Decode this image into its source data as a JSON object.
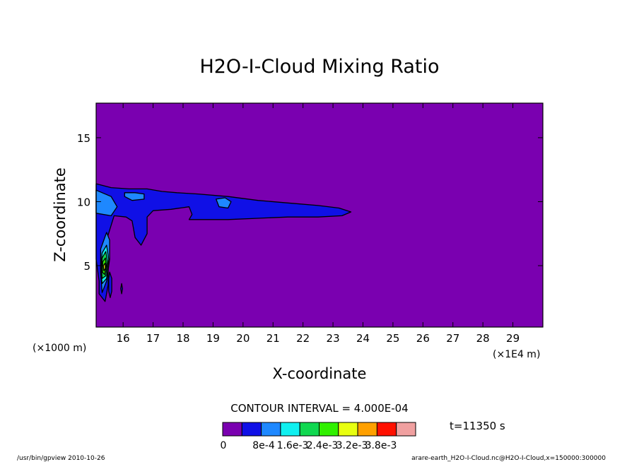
{
  "chart_data": {
    "type": "heatmap",
    "title": "H2O-I-Cloud Mixing Ratio",
    "xlabel": "X-coordinate",
    "ylabel": "Z-coordinate",
    "x_unit_left": "(×1000 m)",
    "x_unit_right": "(×1E4 m)",
    "xlim": [
      15.1,
      30.0
    ],
    "ylim": [
      0.2,
      17.7
    ],
    "x_ticks": [
      "16",
      "17",
      "18",
      "19",
      "20",
      "21",
      "22",
      "23",
      "24",
      "25",
      "26",
      "27",
      "28",
      "29"
    ],
    "y_ticks": [
      "5",
      "10",
      "15"
    ],
    "contour_interval": "CONTOUR INTERVAL = 4.000E-04",
    "time": "t=11350 s",
    "levels": [
      "0",
      "8e-4",
      "1.6e-3",
      "2.4e-3",
      "3.2e-3",
      "3.8e-3"
    ],
    "palette": [
      "#7a00b0",
      "#1010e6",
      "#1e88ff",
      "#10f0f0",
      "#10d850",
      "#30f000",
      "#e8ff10",
      "#ffa000",
      "#ff1000",
      "#f0a0a0"
    ],
    "fields": [
      {
        "name": "cloud-layer",
        "level": 1,
        "points": [
          [
            15.1,
            11.4
          ],
          [
            15.6,
            11.1
          ],
          [
            16.2,
            11.0
          ],
          [
            16.8,
            11.0
          ],
          [
            17.3,
            10.8
          ],
          [
            17.8,
            10.7
          ],
          [
            18.5,
            10.6
          ],
          [
            19.5,
            10.4
          ],
          [
            20.5,
            10.1
          ],
          [
            21.5,
            9.9
          ],
          [
            22.5,
            9.7
          ],
          [
            23.2,
            9.5
          ],
          [
            23.6,
            9.2
          ],
          [
            23.3,
            8.9
          ],
          [
            22.5,
            8.8
          ],
          [
            21.5,
            8.8
          ],
          [
            20.5,
            8.7
          ],
          [
            19.5,
            8.6
          ],
          [
            18.5,
            8.6
          ],
          [
            18.2,
            8.6
          ],
          [
            18.3,
            9.0
          ],
          [
            18.2,
            9.6
          ],
          [
            17.6,
            9.4
          ],
          [
            17.0,
            9.3
          ],
          [
            16.8,
            8.8
          ],
          [
            16.8,
            7.5
          ],
          [
            16.6,
            6.6
          ],
          [
            16.4,
            7.2
          ],
          [
            16.3,
            8.5
          ],
          [
            16.1,
            8.8
          ],
          [
            15.7,
            8.9
          ],
          [
            15.5,
            7.4
          ],
          [
            15.4,
            6.0
          ],
          [
            15.5,
            5.0
          ],
          [
            15.5,
            3.5
          ],
          [
            15.4,
            2.2
          ],
          [
            15.2,
            2.8
          ],
          [
            15.2,
            3.8
          ],
          [
            15.1,
            5.5
          ],
          [
            15.1,
            8.0
          ]
        ]
      },
      {
        "name": "col-streak-a",
        "level": 1,
        "points": [
          [
            15.55,
            4.5
          ],
          [
            15.62,
            4.0
          ],
          [
            15.62,
            3.0
          ],
          [
            15.57,
            2.5
          ],
          [
            15.52,
            3.0
          ],
          [
            15.52,
            4.0
          ]
        ]
      },
      {
        "name": "col-streak-b",
        "level": 1,
        "points": [
          [
            15.95,
            3.6
          ],
          [
            15.98,
            3.2
          ],
          [
            15.95,
            2.8
          ],
          [
            15.92,
            3.2
          ]
        ]
      },
      {
        "name": "inner-left",
        "level": 2,
        "points": [
          [
            15.1,
            10.9
          ],
          [
            15.6,
            10.4
          ],
          [
            15.8,
            9.6
          ],
          [
            15.6,
            8.9
          ],
          [
            15.1,
            9.1
          ]
        ]
      },
      {
        "name": "inner-patch-a",
        "level": 2,
        "points": [
          [
            16.05,
            10.7
          ],
          [
            16.4,
            10.7
          ],
          [
            16.7,
            10.6
          ],
          [
            16.7,
            10.2
          ],
          [
            16.3,
            10.1
          ],
          [
            16.05,
            10.4
          ]
        ]
      },
      {
        "name": "inner-patch-b",
        "level": 2,
        "points": [
          [
            19.1,
            10.2
          ],
          [
            19.4,
            10.3
          ],
          [
            19.6,
            10.0
          ],
          [
            19.5,
            9.5
          ],
          [
            19.2,
            9.6
          ]
        ]
      },
      {
        "name": "inner-column",
        "level": 2,
        "points": [
          [
            15.25,
            6.3
          ],
          [
            15.45,
            7.6
          ],
          [
            15.55,
            7.0
          ],
          [
            15.55,
            5.5
          ],
          [
            15.45,
            3.8
          ],
          [
            15.3,
            2.9
          ],
          [
            15.25,
            4.5
          ]
        ]
      },
      {
        "name": "core-1",
        "level": 3,
        "points": [
          [
            15.3,
            6.0
          ],
          [
            15.45,
            6.6
          ],
          [
            15.52,
            5.5
          ],
          [
            15.45,
            4.0
          ],
          [
            15.3,
            3.6
          ],
          [
            15.25,
            4.8
          ]
        ]
      },
      {
        "name": "core-2",
        "level": 4,
        "points": [
          [
            15.3,
            5.6
          ],
          [
            15.42,
            6.1
          ],
          [
            15.48,
            5.3
          ],
          [
            15.42,
            4.2
          ],
          [
            15.3,
            4.0
          ],
          [
            15.28,
            4.8
          ]
        ]
      },
      {
        "name": "core-3",
        "level": 5,
        "points": [
          [
            15.32,
            5.3
          ],
          [
            15.41,
            5.6
          ],
          [
            15.44,
            5.0
          ],
          [
            15.38,
            4.3
          ],
          [
            15.31,
            4.5
          ]
        ]
      },
      {
        "name": "core-4",
        "level": 6,
        "points": [
          [
            15.34,
            5.0
          ],
          [
            15.4,
            5.2
          ],
          [
            15.41,
            4.8
          ],
          [
            15.36,
            4.6
          ]
        ]
      }
    ]
  },
  "footer": {
    "left": "/usr/bin/gpview  2010-10-26",
    "right": "arare-earth_H2O-I-Cloud.nc@H2O-I-Cloud,x=150000:300000"
  }
}
